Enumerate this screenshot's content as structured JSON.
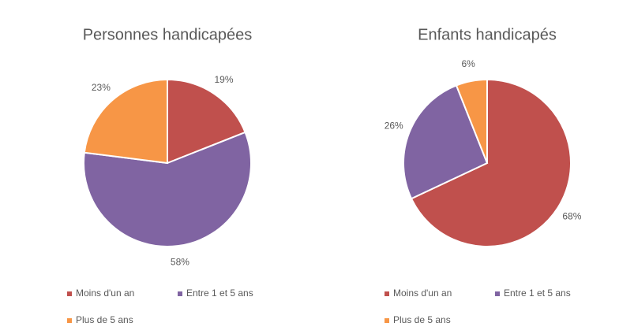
{
  "chart_data": [
    {
      "type": "pie",
      "title": "Personnes handicapées",
      "categories": [
        "Moins d'un an",
        "Entre 1 et 5 ans",
        "Plus de 5 ans"
      ],
      "values": [
        19,
        58,
        23
      ],
      "value_labels": [
        "19%",
        "58%",
        "23%"
      ],
      "colors": [
        "#c0504d",
        "#8064a2",
        "#f79646"
      ]
    },
    {
      "type": "pie",
      "title": "Enfants handicapés",
      "categories": [
        "Moins d'un an",
        "Entre 1 et 5 ans",
        "Plus de 5 ans"
      ],
      "values": [
        68,
        26,
        6
      ],
      "value_labels": [
        "68%",
        "26%",
        "6%"
      ],
      "colors": [
        "#c0504d",
        "#8064a2",
        "#f79646"
      ]
    }
  ]
}
